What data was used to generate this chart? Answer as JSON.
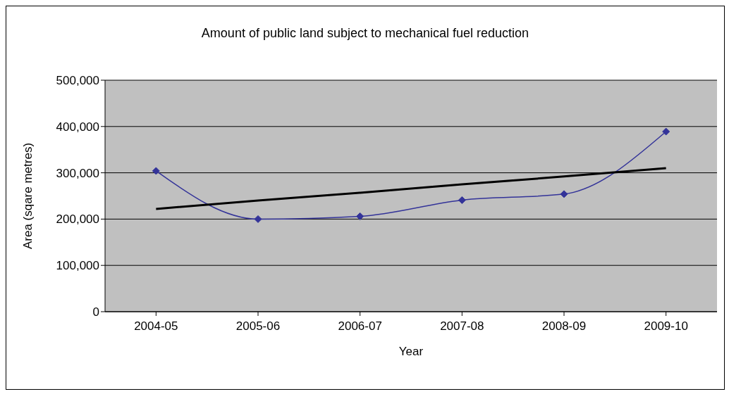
{
  "chart_data": {
    "type": "line",
    "title": "Amount of public land subject to mechanical fuel reduction",
    "xlabel": "Year",
    "ylabel": "Area (sqare metres)",
    "categories": [
      "2004-05",
      "2005-06",
      "2006-07",
      "2007-08",
      "2008-09",
      "2009-10"
    ],
    "series": [
      {
        "color": "#333399",
        "values": [
          304000,
          200000,
          206000,
          241000,
          254000,
          389000
        ],
        "marker": "diamond"
      },
      {
        "type": "line",
        "color": "#000000",
        "values": [
          222000,
          240000,
          257000,
          275000,
          292000,
          310000
        ],
        "marker": "none"
      }
    ],
    "ylim": [
      0,
      500000
    ],
    "yticks": [
      0,
      {
        "value": 100000,
        "label": "100,000"
      },
      {
        "value": 200000,
        "label": "200,000"
      },
      {
        "value": 300000,
        "label": "300,000"
      },
      {
        "value": 400000,
        "label": "400,000"
      },
      {
        "value": 500000,
        "label": "500,000"
      }
    ],
    "grid": "y"
  }
}
